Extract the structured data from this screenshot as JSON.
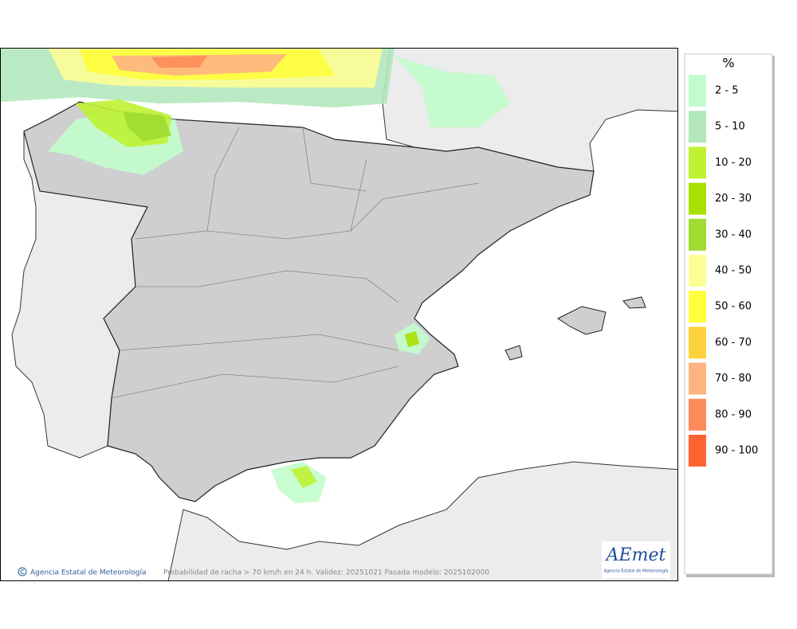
{
  "legend": {
    "title": "%",
    "items": [
      {
        "label": "2 - 5",
        "color": "#c2fccc"
      },
      {
        "label": "5 - 10",
        "color": "#b2e8bc"
      },
      {
        "label": "10 - 20",
        "color": "#bef232"
      },
      {
        "label": "20 - 30",
        "color": "#a8e000"
      },
      {
        "label": "30 - 40",
        "color": "#a0dc32"
      },
      {
        "label": "40 - 50",
        "color": "#fefe96"
      },
      {
        "label": "50 - 60",
        "color": "#fefe3c"
      },
      {
        "label": "60 - 70",
        "color": "#fed23c"
      },
      {
        "label": "70 - 80",
        "color": "#feb482"
      },
      {
        "label": "80 - 90",
        "color": "#fe8c5a"
      },
      {
        "label": "90 - 100",
        "color": "#fe6432"
      }
    ]
  },
  "footer": {
    "credit": "Agencia Estatal de Meteorología",
    "caption": "Probabilidad de racha > 70 km/h en 24 h. Validez: 20251021 Pasada modelo: 2025102000"
  },
  "logo": {
    "name": "AEmet",
    "subtitle": "Agencia Estatal de Meteorología"
  }
}
